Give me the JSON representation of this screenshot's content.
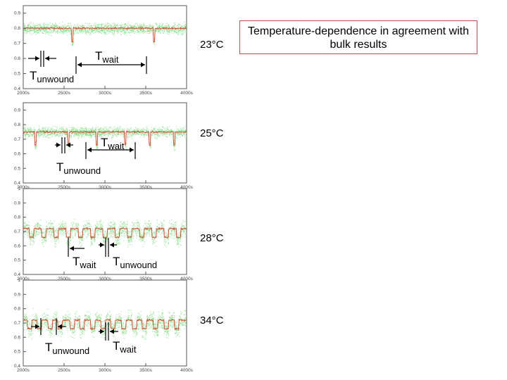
{
  "caption": "Temperature-dependence in agreement with bulk results",
  "label_wait": "T",
  "label_wait_sub": "wait",
  "label_unwound": "T",
  "label_unwound_sub": "unwound",
  "chart_data": [
    {
      "type": "scatter",
      "temperature": "23°C",
      "x_ticks": [
        "2000s",
        "2500s",
        "3000s",
        "3500s",
        "4000s"
      ],
      "y_ticks": [
        "0.9",
        "0.8",
        "0.7",
        "0.6",
        "0.5",
        "0.4"
      ],
      "xlim": [
        2000,
        4000
      ],
      "ylim": [
        0.4,
        0.95
      ],
      "baseline": 0.8,
      "dip_times": [
        2600,
        3600
      ],
      "colors": {
        "points": "#7ed97e",
        "trace": "#c8553a"
      }
    },
    {
      "type": "scatter",
      "temperature": "25°C",
      "x_ticks": [
        "2000s",
        "2500s",
        "3000s",
        "3500s",
        "4000s"
      ],
      "y_ticks": [
        "0.9",
        "0.8",
        "0.7",
        "0.6",
        "0.5",
        "0.4"
      ],
      "xlim": [
        2000,
        4000
      ],
      "ylim": [
        0.4,
        0.95
      ],
      "baseline": 0.75,
      "dip_times": [
        2150,
        2550,
        2900,
        3250,
        3550,
        3850
      ],
      "colors": {
        "points": "#7ed97e",
        "trace": "#c8553a"
      }
    },
    {
      "type": "scatter",
      "temperature": "28°C",
      "x_ticks": [
        "2000s",
        "2500s",
        "3000s",
        "3500s",
        "4000s"
      ],
      "y_ticks": [
        "1",
        "0.9",
        "0.8",
        "0.7",
        "0.6",
        "0.5",
        "0.4"
      ],
      "xlim": [
        2000,
        4000
      ],
      "ylim": [
        0.4,
        1.0
      ],
      "baseline": 0.72,
      "dip_times": [
        2100,
        2250,
        2400,
        2550,
        2700,
        2850,
        3000,
        3150,
        3300,
        3450,
        3600,
        3750,
        3900
      ],
      "colors": {
        "points": "#7ed97e",
        "trace": "#c8553a"
      }
    },
    {
      "type": "scatter",
      "temperature": "34°C",
      "x_ticks": [
        "2000s",
        "2500s",
        "3000s",
        "3500s",
        "4000s"
      ],
      "y_ticks": [
        "1",
        "0.9",
        "0.8",
        "0.7",
        "0.6",
        "0.5",
        "0.4"
      ],
      "xlim": [
        2000,
        4000
      ],
      "ylim": [
        0.4,
        1.0
      ],
      "baseline": 0.72,
      "dip_times": [
        2080,
        2200,
        2330,
        2450,
        2600,
        2720,
        2850,
        2980,
        3100,
        3230,
        3360,
        3480,
        3620,
        3750,
        3880
      ],
      "colors": {
        "points": "#7ed97e",
        "trace": "#c8553a"
      }
    }
  ]
}
